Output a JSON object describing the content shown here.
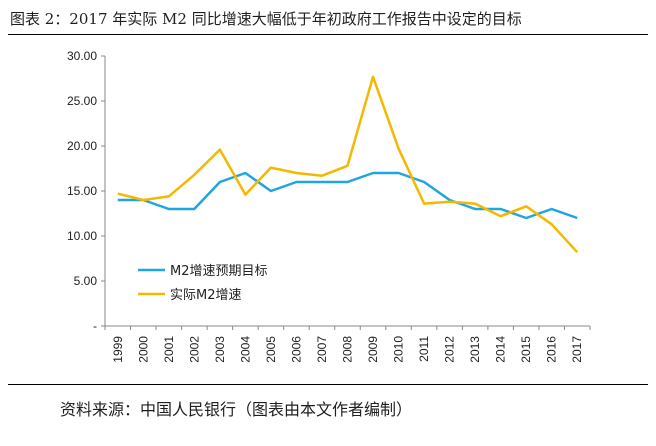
{
  "title": "图表 2：2017 年实际 M2 同比增速大幅低于年初政府工作报告中设定的目标",
  "source": "资料来源：中国人民银行（图表由本文作者编制）",
  "chart_data": {
    "type": "line",
    "x": [
      "1999",
      "2000",
      "2001",
      "2002",
      "2003",
      "2004",
      "2005",
      "2006",
      "2007",
      "2008",
      "2009",
      "2010",
      "2011",
      "2012",
      "2013",
      "2014",
      "2015",
      "2016",
      "2017"
    ],
    "ylim": [
      0,
      30
    ],
    "yticks": [
      "-",
      "5.00",
      "10.00",
      "15.00",
      "20.00",
      "25.00",
      "30.00"
    ],
    "grid": false,
    "legend_position": "lower-left",
    "series": [
      {
        "name": "M2增速预期目标",
        "color": "#1FA5DF",
        "values": [
          14,
          14,
          13,
          13,
          16,
          17,
          15,
          16,
          16,
          16,
          17,
          17,
          16,
          14,
          13,
          13,
          12,
          13,
          12
        ]
      },
      {
        "name": "实际M2增速",
        "color": "#F5B800",
        "values": [
          14.7,
          14.0,
          14.4,
          16.8,
          19.6,
          14.6,
          17.6,
          17.0,
          16.7,
          17.8,
          27.7,
          19.7,
          13.6,
          13.8,
          13.6,
          12.2,
          13.3,
          11.3,
          8.2
        ]
      }
    ]
  }
}
